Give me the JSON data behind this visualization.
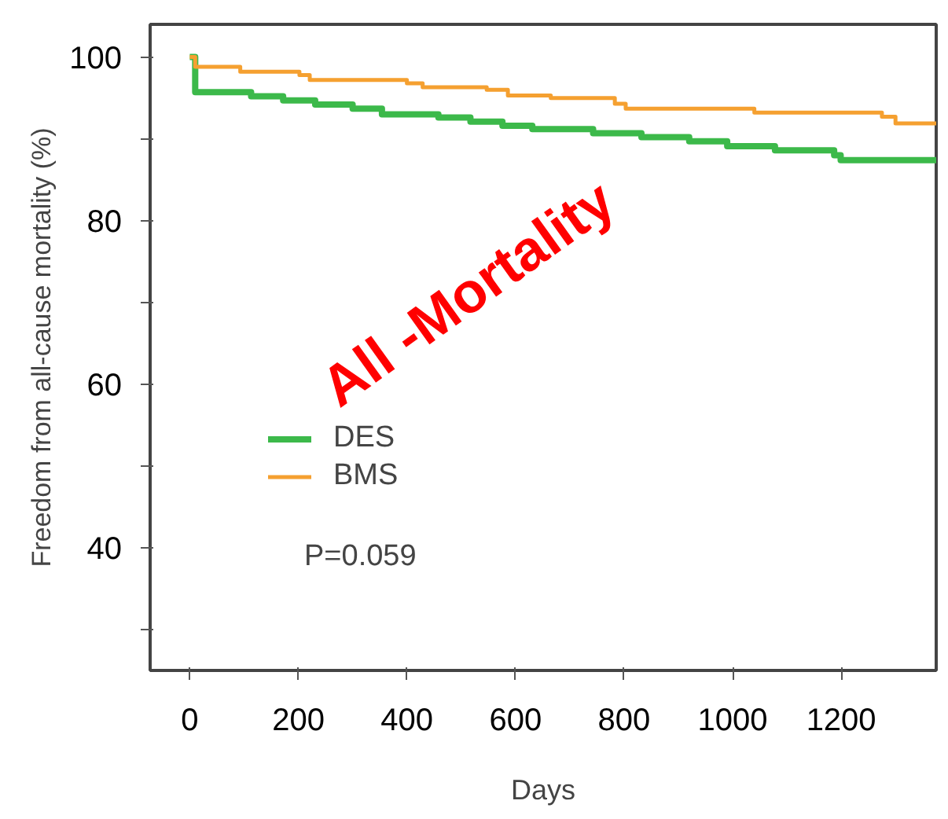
{
  "chart_data": {
    "type": "step",
    "xlabel": "Days",
    "ylabel": "Freedom from all-cause mortality (%)",
    "xlim": [
      -73,
      1375
    ],
    "ylim": [
      25,
      104
    ],
    "xticks": [
      0,
      200,
      400,
      600,
      800,
      1000,
      1200
    ],
    "yticks": [
      100,
      {
        "value": 90,
        "label": null
      },
      80,
      {
        "value": 70,
        "label": null
      },
      60,
      {
        "value": 50,
        "label": null
      },
      40,
      {
        "value": 30,
        "label": null
      }
    ],
    "grid": false,
    "legend": "left",
    "annotations": [
      "All -Mortality",
      "P=0.059"
    ],
    "series": [
      {
        "name": "DES",
        "color": "#3cb94a",
        "x": [
          0,
          10,
          113,
          172,
          231,
          300,
          354,
          458,
          517,
          576,
          631,
          743,
          832,
          920,
          990,
          1078,
          1187,
          1199,
          1375
        ],
        "values": [
          100,
          95.7,
          95.2,
          94.7,
          94.2,
          93.7,
          93.0,
          92.6,
          92.1,
          91.6,
          91.2,
          90.7,
          90.2,
          89.7,
          89.1,
          88.6,
          88.0,
          87.4,
          87.4
        ]
      },
      {
        "name": "BMS",
        "color": "#f5a030",
        "x": [
          0,
          10,
          93,
          202,
          221,
          400,
          429,
          547,
          586,
          665,
          783,
          803,
          1040,
          1275,
          1300,
          1375
        ],
        "values": [
          100,
          98.8,
          98.2,
          97.8,
          97.2,
          96.8,
          96.3,
          96.0,
          95.3,
          95.0,
          94.3,
          93.7,
          93.2,
          92.7,
          91.9,
          91.9
        ]
      }
    ]
  }
}
